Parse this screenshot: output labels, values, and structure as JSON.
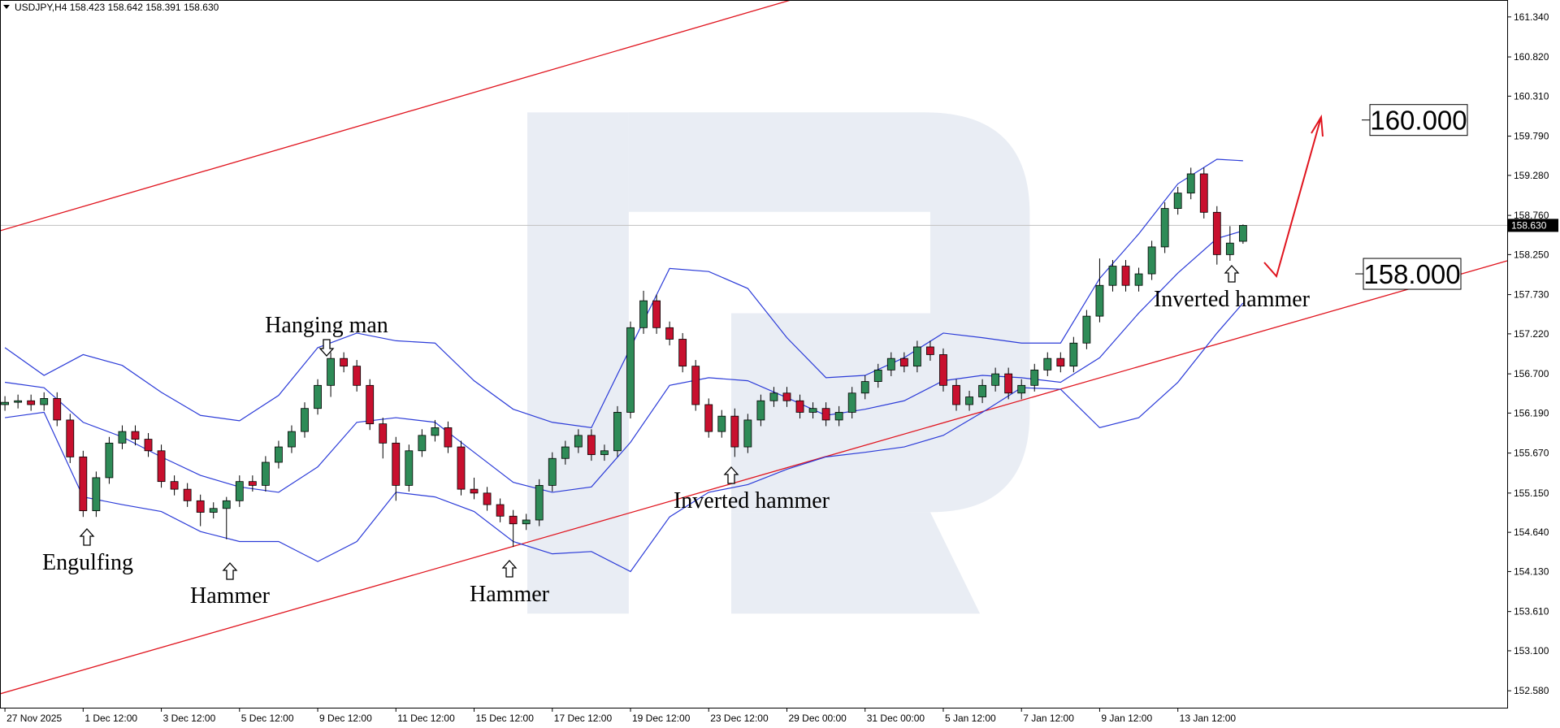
{
  "chart_data": {
    "type": "candlestick",
    "title": "USDJPY,H4  158.423 158.642 158.391 158.630",
    "up_color": "#2e8b57",
    "down_color": "#c8102e",
    "open": [
      156.3,
      156.33,
      156.35,
      156.3,
      156.38,
      156.1,
      155.62,
      154.92,
      155.35,
      155.8,
      155.95,
      155.85,
      155.7,
      155.3,
      155.2,
      155.05,
      154.9,
      154.95,
      155.05,
      155.3,
      155.25,
      155.55,
      155.75,
      155.95,
      156.25,
      156.55,
      156.9,
      156.8,
      156.55,
      156.05,
      155.8,
      155.25,
      155.7,
      155.9,
      156.0,
      155.75,
      155.2,
      155.15,
      155.0,
      154.85,
      154.75,
      154.8,
      155.25,
      155.6,
      155.75,
      155.9,
      155.65,
      155.7,
      156.2,
      157.3,
      157.65,
      157.3,
      157.15,
      156.8,
      156.3,
      155.95,
      156.15,
      155.75,
      156.1,
      156.35,
      156.45,
      156.35,
      156.2,
      156.25,
      156.1,
      156.2,
      156.45,
      156.6,
      156.75,
      156.9,
      156.8,
      157.05,
      156.95,
      156.55,
      156.3,
      156.4,
      156.55,
      156.7,
      156.45,
      156.55,
      156.75,
      156.9,
      156.8,
      157.1,
      157.45,
      157.85,
      158.1,
      157.85,
      158.0,
      158.35,
      158.85,
      159.05,
      159.3,
      158.8,
      158.25,
      158.423
    ],
    "high": [
      156.41,
      156.43,
      156.43,
      156.46,
      156.46,
      156.18,
      155.7,
      155.43,
      155.88,
      156.03,
      156.03,
      155.93,
      155.78,
      155.38,
      155.28,
      155.13,
      155.03,
      155.1,
      155.38,
      155.38,
      155.63,
      155.83,
      156.03,
      156.33,
      156.63,
      156.98,
      156.98,
      156.88,
      156.63,
      156.13,
      155.88,
      155.78,
      155.98,
      156.1,
      156.08,
      155.83,
      155.35,
      155.23,
      155.08,
      154.93,
      154.88,
      155.33,
      155.68,
      155.83,
      155.98,
      155.98,
      155.78,
      156.28,
      157.38,
      157.78,
      157.73,
      157.38,
      157.23,
      156.88,
      156.38,
      156.23,
      156.25,
      156.18,
      156.43,
      156.53,
      156.53,
      156.43,
      156.33,
      156.33,
      156.28,
      156.53,
      156.68,
      156.83,
      156.98,
      156.98,
      157.13,
      157.13,
      157.03,
      156.63,
      156.48,
      156.63,
      156.78,
      156.78,
      156.63,
      156.83,
      156.98,
      156.98,
      157.18,
      157.53,
      158.2,
      158.18,
      158.18,
      158.08,
      158.43,
      158.93,
      159.13,
      159.38,
      159.38,
      158.88,
      158.62,
      158.642
    ],
    "low": [
      156.22,
      156.25,
      156.22,
      156.22,
      156.02,
      155.54,
      154.84,
      154.84,
      155.27,
      155.72,
      155.77,
      155.62,
      155.22,
      155.12,
      154.97,
      154.72,
      154.82,
      154.55,
      154.97,
      155.17,
      155.17,
      155.47,
      155.67,
      155.87,
      156.17,
      156.4,
      156.72,
      156.47,
      155.97,
      155.6,
      155.05,
      155.17,
      155.62,
      155.82,
      155.67,
      155.12,
      155.07,
      154.92,
      154.77,
      154.45,
      154.67,
      154.72,
      155.17,
      155.52,
      155.67,
      155.57,
      155.57,
      155.62,
      156.12,
      157.22,
      157.22,
      157.07,
      156.72,
      156.22,
      155.87,
      155.87,
      155.62,
      155.67,
      156.02,
      156.27,
      156.27,
      156.12,
      156.12,
      156.02,
      156.02,
      156.12,
      156.37,
      156.52,
      156.67,
      156.72,
      156.72,
      156.87,
      156.47,
      156.22,
      156.22,
      156.32,
      156.47,
      156.37,
      156.37,
      156.47,
      156.67,
      156.72,
      156.72,
      157.02,
      157.37,
      157.77,
      157.77,
      157.77,
      157.92,
      158.27,
      158.77,
      158.97,
      158.72,
      158.12,
      158.17,
      158.391
    ],
    "close": [
      156.33,
      156.35,
      156.3,
      156.38,
      156.1,
      155.62,
      154.92,
      155.35,
      155.8,
      155.95,
      155.85,
      155.7,
      155.3,
      155.2,
      155.05,
      154.9,
      154.95,
      155.05,
      155.3,
      155.25,
      155.55,
      155.75,
      155.95,
      156.25,
      156.55,
      156.9,
      156.8,
      156.55,
      156.05,
      155.8,
      155.25,
      155.7,
      155.9,
      156.0,
      155.75,
      155.2,
      155.15,
      155.0,
      154.85,
      154.75,
      154.8,
      155.25,
      155.6,
      155.75,
      155.9,
      155.65,
      155.7,
      156.2,
      157.3,
      157.65,
      157.3,
      157.15,
      156.8,
      156.3,
      155.95,
      156.15,
      155.75,
      156.1,
      156.35,
      156.45,
      156.35,
      156.2,
      156.25,
      156.1,
      156.2,
      156.45,
      156.6,
      156.75,
      156.9,
      156.8,
      157.05,
      156.95,
      156.55,
      156.3,
      156.4,
      156.55,
      156.7,
      156.45,
      156.55,
      156.75,
      156.9,
      156.8,
      157.1,
      157.45,
      157.85,
      158.1,
      157.85,
      158.0,
      158.35,
      158.85,
      159.05,
      159.3,
      158.8,
      158.25,
      158.4,
      158.63
    ],
    "bands": {
      "color": "#2b3bd8",
      "x": [
        0,
        3,
        6,
        9,
        12,
        15,
        18,
        21,
        24,
        27,
        30,
        33,
        36,
        39,
        42,
        45,
        48,
        51,
        54,
        57,
        60,
        63,
        66,
        69,
        72,
        75,
        78,
        81,
        84,
        87,
        90,
        93,
        95
      ],
      "upper": [
        157.04,
        156.68,
        156.95,
        156.81,
        156.46,
        156.16,
        156.09,
        156.42,
        157.04,
        157.23,
        157.13,
        157.1,
        156.61,
        156.24,
        156.07,
        156.0,
        157.04,
        158.07,
        158.03,
        157.81,
        157.17,
        156.65,
        156.68,
        156.91,
        157.23,
        157.17,
        157.1,
        157.1,
        157.94,
        158.52,
        159.17,
        159.49,
        159.47
      ],
      "middle": [
        156.59,
        156.52,
        156.07,
        155.88,
        155.62,
        155.38,
        155.23,
        155.16,
        155.49,
        156.07,
        156.13,
        156.07,
        155.68,
        155.29,
        155.16,
        155.23,
        155.81,
        156.55,
        156.65,
        156.61,
        156.39,
        156.16,
        156.24,
        156.35,
        156.61,
        156.68,
        156.65,
        156.59,
        156.91,
        157.49,
        158.01,
        158.46,
        158.56
      ],
      "lower": [
        156.13,
        156.2,
        155.1,
        155.0,
        154.91,
        154.65,
        154.52,
        154.52,
        154.26,
        154.52,
        155.16,
        155.1,
        154.91,
        154.52,
        154.36,
        154.39,
        154.13,
        154.84,
        155.16,
        155.26,
        155.46,
        155.62,
        155.68,
        155.75,
        155.9,
        156.2,
        156.52,
        156.5,
        156.0,
        156.13,
        156.59,
        157.23,
        157.62
      ]
    },
    "trendlines": {
      "color": "#e0141e",
      "lines": [
        {
          "x": [
            -0.38,
            60.3
          ],
          "y": [
            158.56,
            161.56
          ]
        },
        {
          "x": [
            -0.38,
            115.27
          ],
          "y": [
            152.54,
            158.17
          ]
        }
      ]
    },
    "annotations": [
      "Hanging man",
      "Engulfing",
      "Hammer",
      "Hammer",
      "Inverted hammer",
      "Inverted hammer"
    ],
    "levels": [
      {
        "value": 160,
        "label": "160.000"
      },
      {
        "value": 158,
        "label": "158.000"
      }
    ],
    "price_tag": {
      "value": 158.63,
      "label": "158.630"
    },
    "xlim": [
      -0.38,
      115.27
    ],
    "ylim": [
      152.36,
      161.56
    ],
    "xticks": [
      {
        "value": 0,
        "label": "27 Nov 2025"
      },
      {
        "value": 6,
        "label": "1 Dec 12:00"
      },
      {
        "value": 12,
        "label": "3 Dec 12:00"
      },
      {
        "value": 18,
        "label": "5 Dec 12:00"
      },
      {
        "value": 24,
        "label": "9 Dec 12:00"
      },
      {
        "value": 30,
        "label": "11 Dec 12:00"
      },
      {
        "value": 36,
        "label": "15 Dec 12:00"
      },
      {
        "value": 42,
        "label": "17 Dec 12:00"
      },
      {
        "value": 48,
        "label": "19 Dec 12:00"
      },
      {
        "value": 54,
        "label": "23 Dec 12:00"
      },
      {
        "value": 60,
        "label": "29 Dec 00:00"
      },
      {
        "value": 66,
        "label": "31 Dec 00:00"
      },
      {
        "value": 72,
        "label": "5 Jan 12:00"
      },
      {
        "value": 78,
        "label": "7 Jan 12:00"
      },
      {
        "value": 84,
        "label": "9 Jan 12:00"
      },
      {
        "value": 90,
        "label": "13 Jan 12:00"
      }
    ],
    "yticks": [
      {
        "value": 161.34,
        "label": "161.340"
      },
      {
        "value": 160.82,
        "label": "160.820"
      },
      {
        "value": 160.31,
        "label": "160.310"
      },
      {
        "value": 159.79,
        "label": "159.790"
      },
      {
        "value": 159.28,
        "label": "159.280"
      },
      {
        "value": 158.76,
        "label": "158.760"
      },
      {
        "value": 158.25,
        "label": "158.250"
      },
      {
        "value": 157.73,
        "label": "157.730"
      },
      {
        "value": 157.22,
        "label": "157.220"
      },
      {
        "value": 156.7,
        "label": "156.700"
      },
      {
        "value": 156.19,
        "label": "156.190"
      },
      {
        "value": 155.67,
        "label": "155.670"
      },
      {
        "value": 155.15,
        "label": "155.150"
      },
      {
        "value": 154.64,
        "label": "154.640"
      },
      {
        "value": 154.13,
        "label": "154.130"
      },
      {
        "value": 153.61,
        "label": "153.610"
      },
      {
        "value": 153.1,
        "label": "153.100"
      },
      {
        "value": 152.58,
        "label": "152.580"
      }
    ]
  }
}
